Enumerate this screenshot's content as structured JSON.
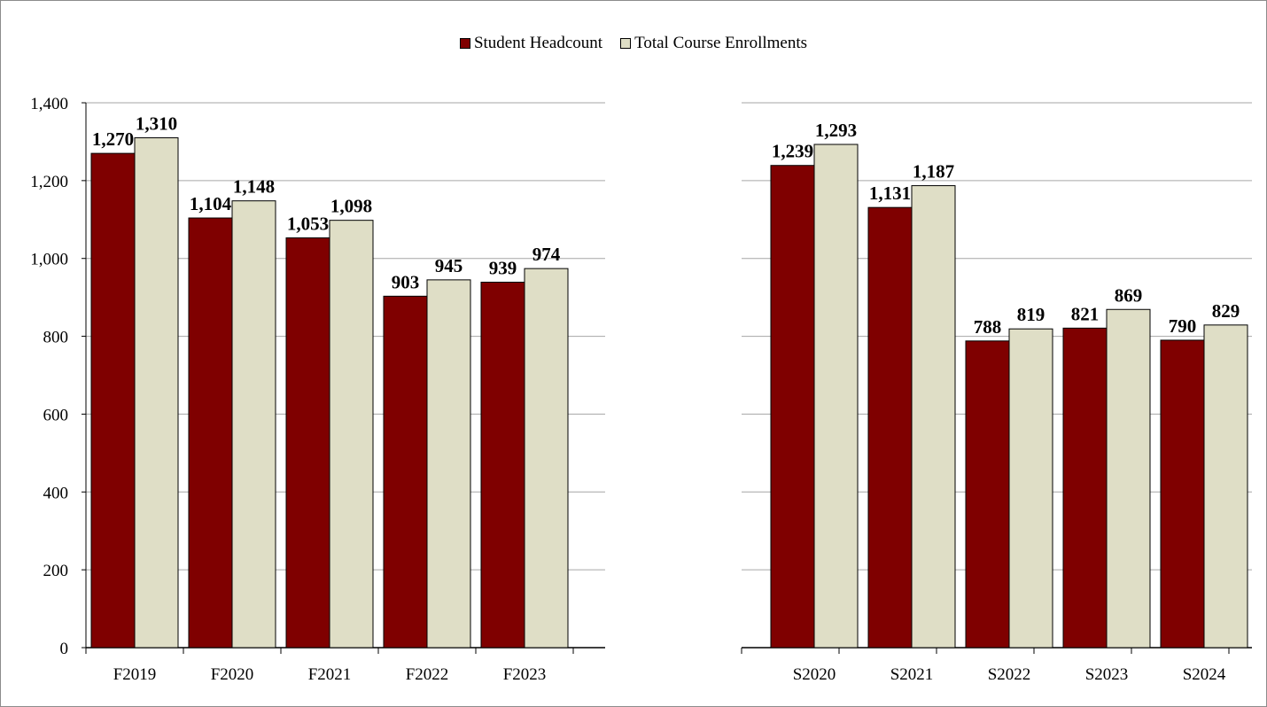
{
  "colors": {
    "headcount": "#7f0000",
    "enrollments": "#dfdec6",
    "grid": "#a6a6a6",
    "axis": "#000000"
  },
  "chart_data": [
    {
      "type": "bar",
      "categories": [
        "F2019",
        "F2020",
        "F2021",
        "F2022",
        "F2023"
      ],
      "series": [
        {
          "name": "Student Headcount",
          "values": [
            1270,
            1104,
            1053,
            903,
            939
          ],
          "labels": [
            "1,270",
            "1,104",
            "1,053",
            "903",
            "939"
          ]
        },
        {
          "name": "Total Course Enrollments",
          "values": [
            1310,
            1148,
            1098,
            945,
            974
          ],
          "labels": [
            "1,310",
            "1,148",
            "1,098",
            "945",
            "974"
          ]
        }
      ],
      "ylim": [
        0,
        1400
      ],
      "yticks": [
        0,
        200,
        400,
        600,
        800,
        1000,
        1200,
        1400
      ],
      "ytick_labels": [
        "0",
        "200",
        "400",
        "600",
        "800",
        "1,000",
        "1,200",
        "1,400"
      ],
      "grid": true,
      "legend": "top-center"
    },
    {
      "type": "bar",
      "categories": [
        "S2020",
        "S2021",
        "S2022",
        "S2023",
        "S2024"
      ],
      "series": [
        {
          "name": "Student Headcount",
          "values": [
            1239,
            1131,
            788,
            821,
            790
          ],
          "labels": [
            "1,239",
            "1,131",
            "788",
            "821",
            "790"
          ]
        },
        {
          "name": "Total Course Enrollments",
          "values": [
            1293,
            1187,
            819,
            869,
            829
          ],
          "labels": [
            "1,293",
            "1,187",
            "819",
            "869",
            "829"
          ]
        }
      ],
      "ylim": [
        0,
        1400
      ],
      "grid": true
    }
  ],
  "legend": {
    "items": [
      {
        "label": "Student Headcount"
      },
      {
        "label": "Total Course Enrollments"
      }
    ]
  }
}
